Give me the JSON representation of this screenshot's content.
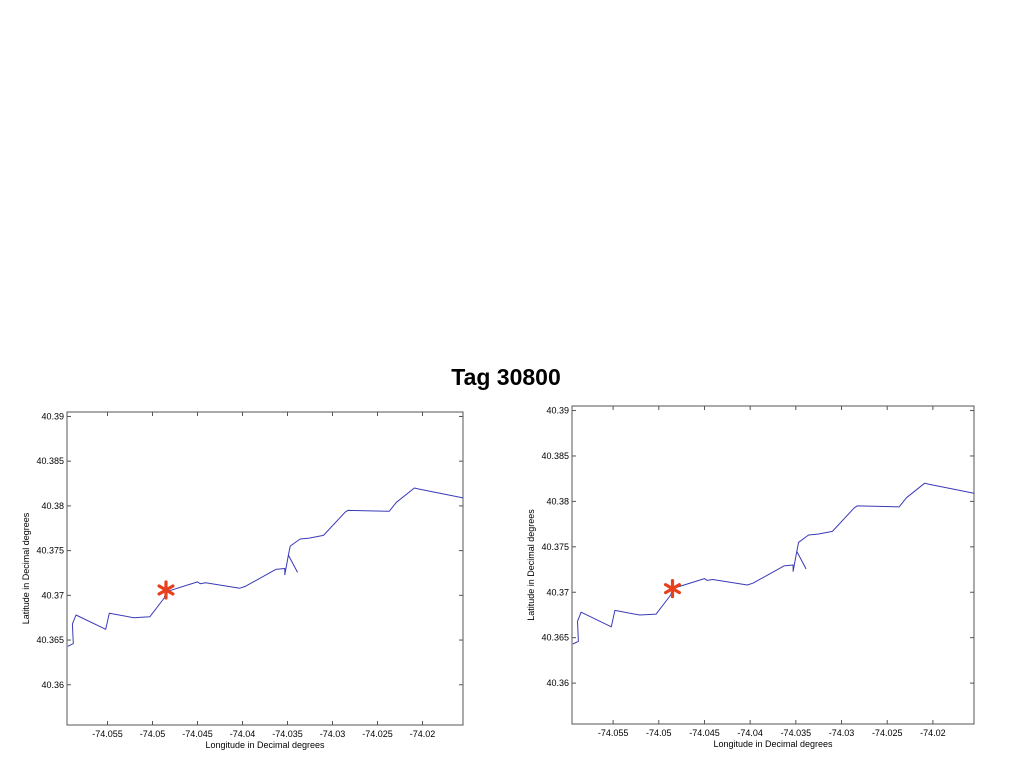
{
  "slide": {
    "title": "Tag 30800"
  },
  "colors": {
    "track": "#3a3ab8",
    "marker": "#e8401c",
    "axes": "#555555"
  },
  "chart_data": [
    {
      "type": "line",
      "xlabel": "Longitude in Decimal degrees",
      "ylabel": "Latitude in Decimal degrees",
      "xlim": [
        -74.0595,
        -74.0155
      ],
      "ylim": [
        40.3555,
        40.3905
      ],
      "xticks": [
        -74.055,
        -74.05,
        -74.045,
        -74.04,
        -74.035,
        -74.03,
        -74.025,
        -74.02
      ],
      "xtick_labels": [
        "-74.055",
        "-74.05",
        "-74.045",
        "-74.04",
        "-74.035",
        "-74.03",
        "-74.025",
        "-74.02"
      ],
      "yticks": [
        40.36,
        40.365,
        40.37,
        40.375,
        40.38,
        40.385,
        40.39
      ],
      "ytick_labels": [
        "40.36",
        "40.365",
        "40.37",
        "40.375",
        "40.38",
        "40.385",
        "40.39"
      ],
      "grid": false,
      "series": [
        {
          "x": [
            -74.0594,
            -74.0588,
            -74.0589,
            -74.0585,
            -74.0552,
            -74.0548,
            -74.0521,
            -74.0503,
            -74.0487,
            -74.0485,
            -74.045,
            -74.0447,
            -74.0441,
            -74.0403,
            -74.0397,
            -74.0363,
            -74.0353,
            -74.0353,
            -74.0349,
            -74.0339,
            -74.0349,
            -74.0347,
            -74.0336,
            -74.0326,
            -74.031,
            -74.0286,
            -74.0283,
            -74.0237,
            -74.0229,
            -74.0209,
            -74.0205,
            -74.0155
          ],
          "y": [
            40.3643,
            40.3646,
            40.3668,
            40.3678,
            40.3662,
            40.368,
            40.3675,
            40.3676,
            40.3697,
            40.3704,
            40.3715,
            40.3713,
            40.3714,
            40.3708,
            40.371,
            40.3729,
            40.373,
            40.3723,
            40.3745,
            40.3726,
            40.3745,
            40.3755,
            40.3763,
            40.3764,
            40.3767,
            40.3793,
            40.3795,
            40.3794,
            40.3804,
            40.382,
            40.3819,
            40.3809
          ]
        }
      ],
      "marker": {
        "x": -74.0485,
        "y": 40.3706,
        "symbol": "*"
      }
    },
    {
      "type": "line",
      "xlabel": "Longitude in Decimal degrees",
      "ylabel": "Latitude in Decimal degrees",
      "xlim": [
        -74.0595,
        -74.0155
      ],
      "ylim": [
        40.3555,
        40.3905
      ],
      "xticks": [
        -74.055,
        -74.05,
        -74.045,
        -74.04,
        -74.035,
        -74.03,
        -74.025,
        -74.02
      ],
      "xtick_labels": [
        "-74.055",
        "-74.05",
        "-74.045",
        "-74.04",
        "-74.035",
        "-74.03",
        "-74.025",
        "-74.02"
      ],
      "yticks": [
        40.36,
        40.365,
        40.37,
        40.375,
        40.38,
        40.385,
        40.39
      ],
      "ytick_labels": [
        "40.36",
        "40.365",
        "40.37",
        "40.375",
        "40.38",
        "40.385",
        "40.39"
      ],
      "grid": false,
      "series": [
        {
          "x": [
            -74.0594,
            -74.0588,
            -74.0589,
            -74.0585,
            -74.0552,
            -74.0548,
            -74.0521,
            -74.0503,
            -74.0487,
            -74.0485,
            -74.045,
            -74.0447,
            -74.0441,
            -74.0403,
            -74.0397,
            -74.0363,
            -74.0353,
            -74.0353,
            -74.0349,
            -74.0339,
            -74.0349,
            -74.0347,
            -74.0336,
            -74.0326,
            -74.031,
            -74.0286,
            -74.0283,
            -74.0237,
            -74.0229,
            -74.0209,
            -74.0205,
            -74.0155
          ],
          "y": [
            40.3643,
            40.3646,
            40.3668,
            40.3678,
            40.3662,
            40.368,
            40.3675,
            40.3676,
            40.3697,
            40.3704,
            40.3715,
            40.3713,
            40.3714,
            40.3708,
            40.371,
            40.3729,
            40.373,
            40.3723,
            40.3745,
            40.3726,
            40.3745,
            40.3755,
            40.3763,
            40.3764,
            40.3767,
            40.3793,
            40.3795,
            40.3794,
            40.3804,
            40.382,
            40.3819,
            40.3809
          ]
        }
      ],
      "marker": {
        "x": -74.0485,
        "y": 40.3704,
        "symbol": "*"
      }
    }
  ]
}
